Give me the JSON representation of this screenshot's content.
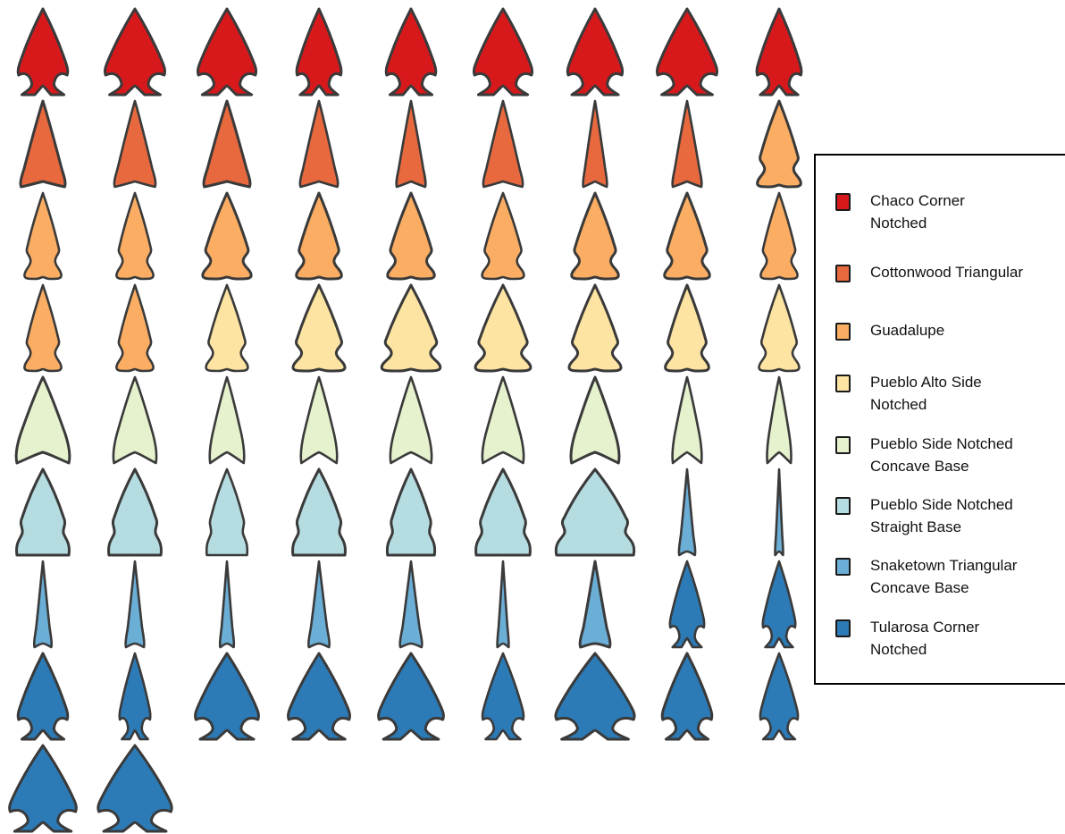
{
  "outline_color": "#3a3a3a",
  "legend": {
    "items": [
      {
        "label": "Chaco Corner Notched",
        "lines": [
          "Chaco Corner",
          "Notched"
        ],
        "color": "#d7191c",
        "shape": "corner"
      },
      {
        "label": "Cottonwood Triangular",
        "lines": [
          "Cottonwood Triangular"
        ],
        "color": "#e8693e",
        "shape": "triangle"
      },
      {
        "label": "Guadalupe",
        "lines": [
          "Guadalupe"
        ],
        "color": "#fbae63",
        "shape": "side"
      },
      {
        "label": "Pueblo Alto Side Notched",
        "lines": [
          "Pueblo Alto Side",
          "Notched"
        ],
        "color": "#fde4a2",
        "shape": "side"
      },
      {
        "label": "Pueblo Side Notched Concave Base",
        "lines": [
          "Pueblo Side Notched",
          "Concave Base"
        ],
        "color": "#e5f2cd",
        "shape": "concave"
      },
      {
        "label": "Pueblo Side Notched Straight Base",
        "lines": [
          "Pueblo Side Notched",
          "Straight Base"
        ],
        "color": "#b5dce0",
        "shape": "straight"
      },
      {
        "label": "Snaketown Triangular Concave Base",
        "lines": [
          "Snaketown Triangular",
          "Concave Base"
        ],
        "color": "#6baed6",
        "shape": "slim"
      },
      {
        "label": "Tularosa Corner Notched",
        "lines": [
          "Tularosa Corner",
          "Notched"
        ],
        "color": "#2c7bb6",
        "shape": "corner"
      }
    ]
  },
  "grid": {
    "points": [
      "Chaco Corner Notched",
      "Chaco Corner Notched",
      "Chaco Corner Notched",
      "Chaco Corner Notched",
      "Chaco Corner Notched",
      "Chaco Corner Notched",
      "Chaco Corner Notched",
      "Chaco Corner Notched",
      "Chaco Corner Notched",
      "Cottonwood Triangular",
      "Cottonwood Triangular",
      "Cottonwood Triangular",
      "Cottonwood Triangular",
      "Cottonwood Triangular",
      "Cottonwood Triangular",
      "Cottonwood Triangular",
      "Cottonwood Triangular",
      "Guadalupe",
      "Guadalupe",
      "Guadalupe",
      "Guadalupe",
      "Guadalupe",
      "Guadalupe",
      "Guadalupe",
      "Guadalupe",
      "Guadalupe",
      "Guadalupe",
      "Guadalupe",
      "Guadalupe",
      "Pueblo Alto Side Notched",
      "Pueblo Alto Side Notched",
      "Pueblo Alto Side Notched",
      "Pueblo Alto Side Notched",
      "Pueblo Alto Side Notched",
      "Pueblo Alto Side Notched",
      "Pueblo Alto Side Notched",
      "Pueblo Side Notched Concave Base",
      "Pueblo Side Notched Concave Base",
      "Pueblo Side Notched Concave Base",
      "Pueblo Side Notched Concave Base",
      "Pueblo Side Notched Concave Base",
      "Pueblo Side Notched Concave Base",
      "Pueblo Side Notched Concave Base",
      "Pueblo Side Notched Concave Base",
      "Pueblo Side Notched Concave Base",
      "Pueblo Side Notched Straight Base",
      "Pueblo Side Notched Straight Base",
      "Pueblo Side Notched Straight Base",
      "Pueblo Side Notched Straight Base",
      "Pueblo Side Notched Straight Base",
      "Pueblo Side Notched Straight Base",
      "Pueblo Side Notched Straight Base",
      "Snaketown Triangular Concave Base",
      "Snaketown Triangular Concave Base",
      "Snaketown Triangular Concave Base",
      "Snaketown Triangular Concave Base",
      "Snaketown Triangular Concave Base",
      "Snaketown Triangular Concave Base",
      "Snaketown Triangular Concave Base",
      "Snaketown Triangular Concave Base",
      "Snaketown Triangular Concave Base",
      "Tularosa Corner Notched",
      "Tularosa Corner Notched",
      "Tularosa Corner Notched",
      "Tularosa Corner Notched",
      "Tularosa Corner Notched",
      "Tularosa Corner Notched",
      "Tularosa Corner Notched",
      "Tularosa Corner Notched",
      "Tularosa Corner Notched",
      "Tularosa Corner Notched",
      "Tularosa Corner Notched",
      "Tularosa Corner Notched",
      "Tularosa Corner Notched"
    ]
  }
}
